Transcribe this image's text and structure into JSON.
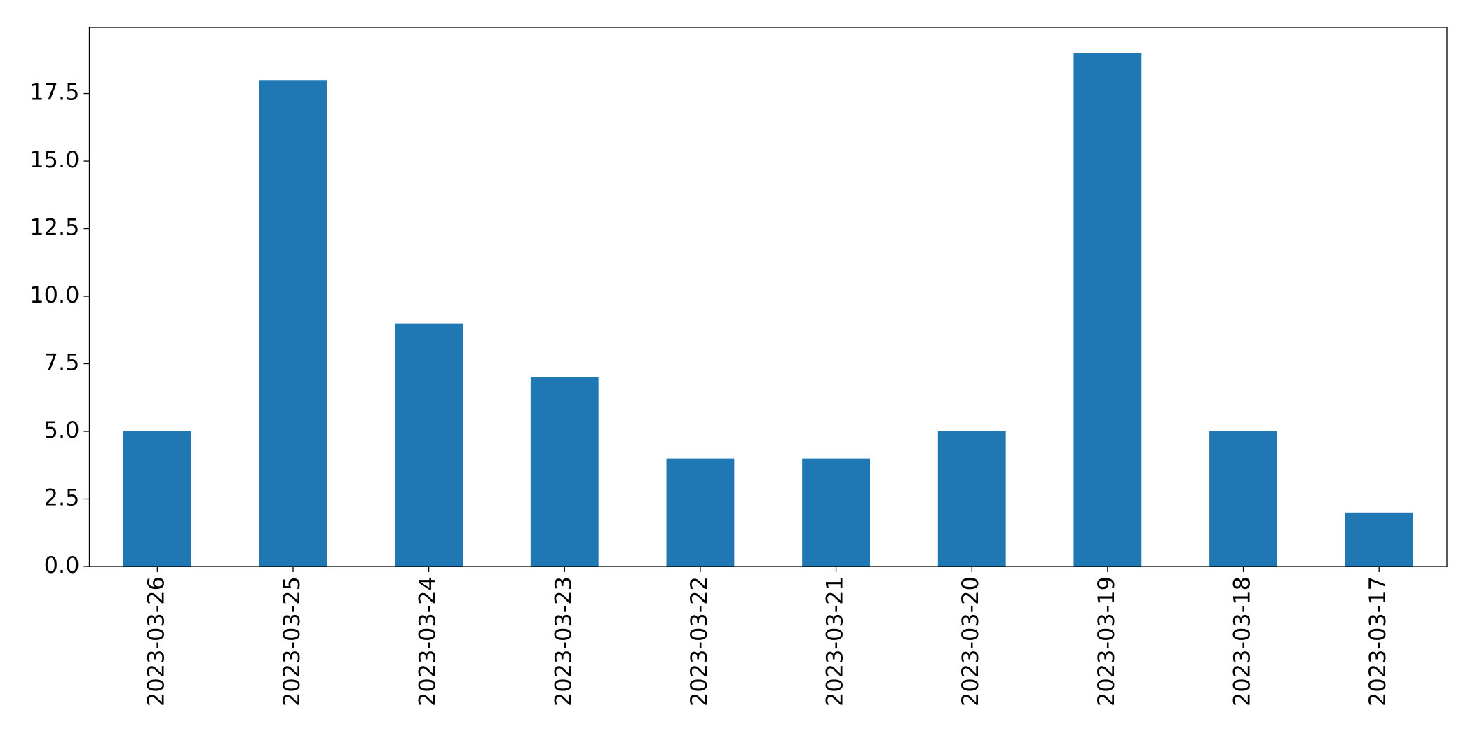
{
  "chart_data": {
    "type": "bar",
    "categories": [
      "2023-03-26",
      "2023-03-25",
      "2023-03-24",
      "2023-03-23",
      "2023-03-22",
      "2023-03-21",
      "2023-03-20",
      "2023-03-19",
      "2023-03-18",
      "2023-03-17"
    ],
    "values": [
      5,
      18,
      9,
      7,
      4,
      4,
      5,
      19,
      5,
      2
    ],
    "color": "#1f77b4",
    "ylim": [
      0,
      19.95
    ],
    "yticks": [
      {
        "value": 0,
        "label": "0.0"
      },
      2.5,
      {
        "value": 5,
        "label": "5.0"
      },
      7.5,
      {
        "value": 10,
        "label": "10.0"
      },
      12.5,
      {
        "value": 15,
        "label": "15.0"
      },
      17.5
    ],
    "grid": false
  }
}
